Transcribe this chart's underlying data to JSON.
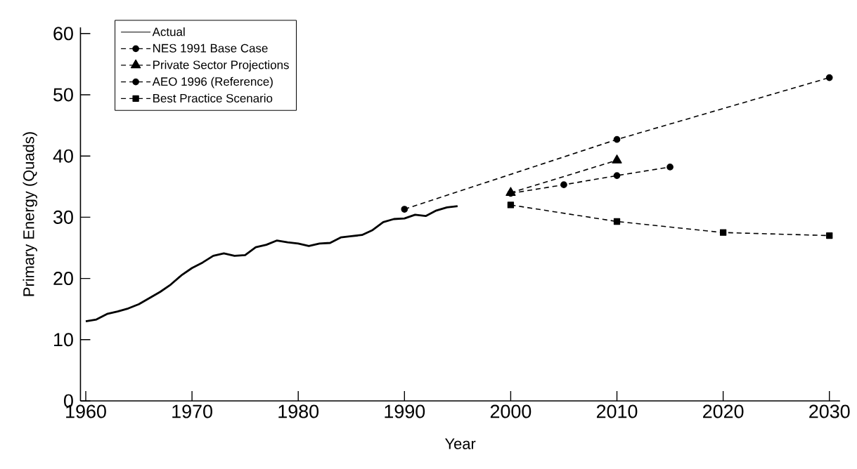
{
  "chart_data": {
    "type": "line",
    "xlabel": "Year",
    "ylabel": "Primary Energy (Quads)",
    "xlim": [
      1959.5,
      2031
    ],
    "ylim": [
      0,
      61
    ],
    "xticks": [
      1960,
      1970,
      1980,
      1990,
      2000,
      2010,
      2020,
      2030
    ],
    "yticks": [
      0,
      10,
      20,
      30,
      40,
      50,
      60
    ],
    "grid": false,
    "legend": "top left",
    "series": [
      {
        "name": "Actual",
        "color": "#000000",
        "line_style": "solid",
        "marker": "none",
        "x": [
          1960,
          1961,
          1962,
          1963,
          1964,
          1965,
          1966,
          1967,
          1968,
          1969,
          1970,
          1971,
          1972,
          1973,
          1974,
          1975,
          1976,
          1977,
          1978,
          1979,
          1980,
          1981,
          1982,
          1983,
          1984,
          1985,
          1986,
          1987,
          1988,
          1989,
          1990,
          1991,
          1992,
          1993,
          1994,
          1995
        ],
        "values": [
          13,
          13.3,
          14.2,
          14.6,
          15.1,
          15.8,
          16.8,
          17.8,
          19,
          20.5,
          21.7,
          22.6,
          23.7,
          24.1,
          23.7,
          23.8,
          25.1,
          25.5,
          26.2,
          25.9,
          25.7,
          25.3,
          25.7,
          25.8,
          26.7,
          26.9,
          27.1,
          27.9,
          29.2,
          29.7,
          29.8,
          30.4,
          30.2,
          31.1,
          31.6,
          31.8
        ]
      },
      {
        "name": "NES 1991 Base Case",
        "color": "#000000",
        "line_style": "dashed",
        "marker": "circle",
        "x": [
          1990,
          2010,
          2030
        ],
        "values": [
          31.3,
          42.7,
          52.8
        ]
      },
      {
        "name": "Private Sector Projections",
        "color": "#000000",
        "line_style": "dashed",
        "marker": "triangle",
        "x": [
          2000,
          2010
        ],
        "values": [
          34,
          39.3
        ]
      },
      {
        "name": "AEO 1996 (Reference)",
        "color": "#000000",
        "line_style": "dashed",
        "marker": "circle",
        "x": [
          2000,
          2005,
          2010,
          2015
        ],
        "values": [
          33.9,
          35.3,
          36.8,
          38.2
        ]
      },
      {
        "name": "Best Practice Scenario",
        "color": "#000000",
        "line_style": "dashed",
        "marker": "square",
        "x": [
          2000,
          2010,
          2020,
          2030
        ],
        "values": [
          32,
          29.3,
          27.5,
          27
        ]
      }
    ]
  }
}
